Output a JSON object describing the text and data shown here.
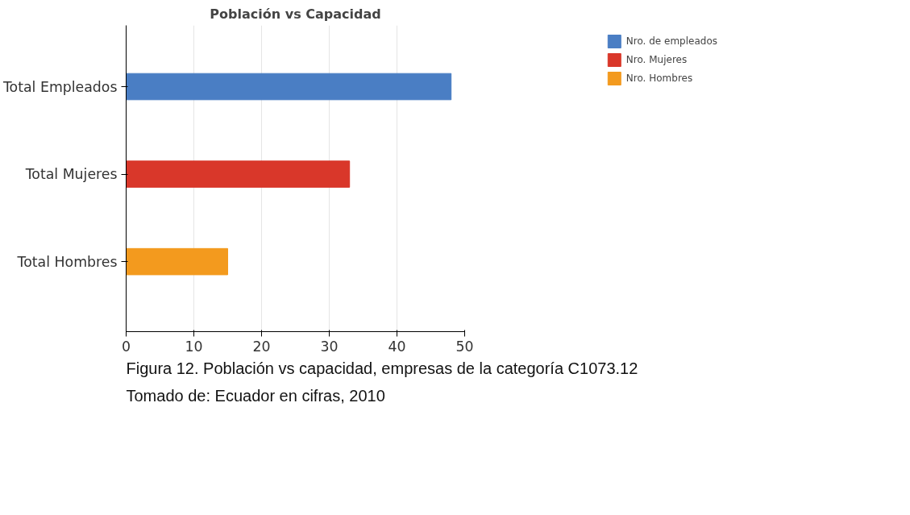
{
  "chart_data": {
    "type": "bar",
    "orientation": "horizontal",
    "title": "Población vs Capacidad",
    "categories": [
      "Total Empleados",
      "Total Mujeres",
      "Total Hombres"
    ],
    "series": [
      {
        "name": "Nro. de empleados",
        "color": "#4a7ec4",
        "values": [
          48,
          null,
          null
        ]
      },
      {
        "name": "Nro. Mujeres",
        "color": "#d9372a",
        "values": [
          null,
          33,
          null
        ]
      },
      {
        "name": "Nro. Hombres",
        "color": "#f39a1e",
        "values": [
          null,
          null,
          15
        ]
      }
    ],
    "xlim": [
      0,
      50
    ],
    "xticks": [
      0,
      10,
      20,
      30,
      40,
      50
    ],
    "grid": "x",
    "legend": "right",
    "annotations": [
      "Figura 12.  Población vs capacidad, empresas de la categoría C1073.12",
      "Tomado de: Ecuador en cifras, 2010"
    ]
  }
}
